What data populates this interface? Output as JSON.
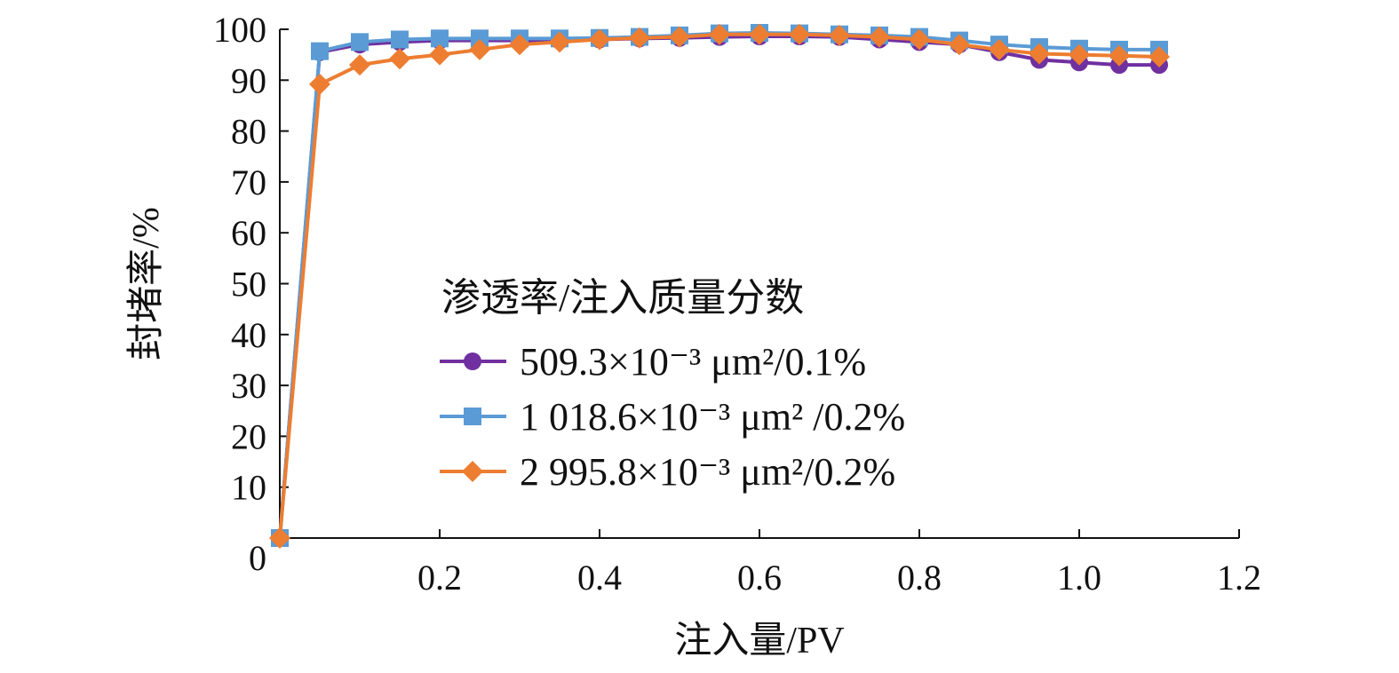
{
  "chart_data": {
    "type": "line",
    "title": "",
    "xlabel": "注入量/PV",
    "ylabel": "封堵率/%",
    "xlim": [
      0,
      1.2
    ],
    "ylim": [
      0,
      100
    ],
    "xticks": [
      "0.2",
      "0.4",
      "0.6",
      "0.8",
      "1.0",
      "1.2"
    ],
    "yticks": [
      "0",
      "10",
      "20",
      "30",
      "40",
      "50",
      "60",
      "70",
      "80",
      "90",
      "100"
    ],
    "grid": false,
    "legend": {
      "title": "渗透率/注入质量分数",
      "placement": "center"
    },
    "series": [
      {
        "name": "509.3×10⁻³ μm²/0.1%",
        "color": "#7030A0",
        "marker": "circle",
        "x": [
          0,
          0.05,
          0.1,
          0.15,
          0.2,
          0.25,
          0.3,
          0.35,
          0.4,
          0.45,
          0.5,
          0.55,
          0.6,
          0.65,
          0.7,
          0.75,
          0.8,
          0.85,
          0.9,
          0.95,
          1.0,
          1.05,
          1.1
        ],
        "y": [
          0,
          95.5,
          97,
          97.5,
          97.8,
          97.8,
          97.8,
          97.8,
          98,
          98.2,
          98.3,
          98.5,
          98.6,
          98.6,
          98.5,
          98,
          97.5,
          97,
          95.5,
          94,
          93.5,
          93,
          93
        ]
      },
      {
        "name": "1 018.6×10⁻³ μm² /0.2%",
        "color": "#5B9BD5",
        "marker": "square",
        "x": [
          0,
          0.05,
          0.1,
          0.15,
          0.2,
          0.25,
          0.3,
          0.35,
          0.4,
          0.45,
          0.5,
          0.55,
          0.6,
          0.65,
          0.7,
          0.75,
          0.8,
          0.85,
          0.9,
          0.95,
          1.0,
          1.05,
          1.1
        ],
        "y": [
          0,
          95.7,
          97.5,
          98,
          98.2,
          98.2,
          98.2,
          98.2,
          98.3,
          98.5,
          98.8,
          99.2,
          99.3,
          99.2,
          99,
          98.8,
          98.5,
          97.8,
          97,
          96.5,
          96.2,
          96,
          96
        ]
      },
      {
        "name": "2 995.8×10⁻³ μm²/0.2%",
        "color": "#ED7D31",
        "marker": "diamond",
        "x": [
          0,
          0.05,
          0.1,
          0.15,
          0.2,
          0.25,
          0.3,
          0.35,
          0.4,
          0.45,
          0.5,
          0.55,
          0.6,
          0.65,
          0.7,
          0.75,
          0.8,
          0.85,
          0.9,
          0.95,
          1.0,
          1.05,
          1.1
        ],
        "y": [
          0,
          89.2,
          93,
          94.2,
          95,
          96,
          97,
          97.5,
          98,
          98.3,
          98.5,
          99,
          99,
          99,
          98.8,
          98.5,
          98,
          97,
          96,
          95.2,
          95,
          94.8,
          94.6
        ]
      }
    ]
  }
}
